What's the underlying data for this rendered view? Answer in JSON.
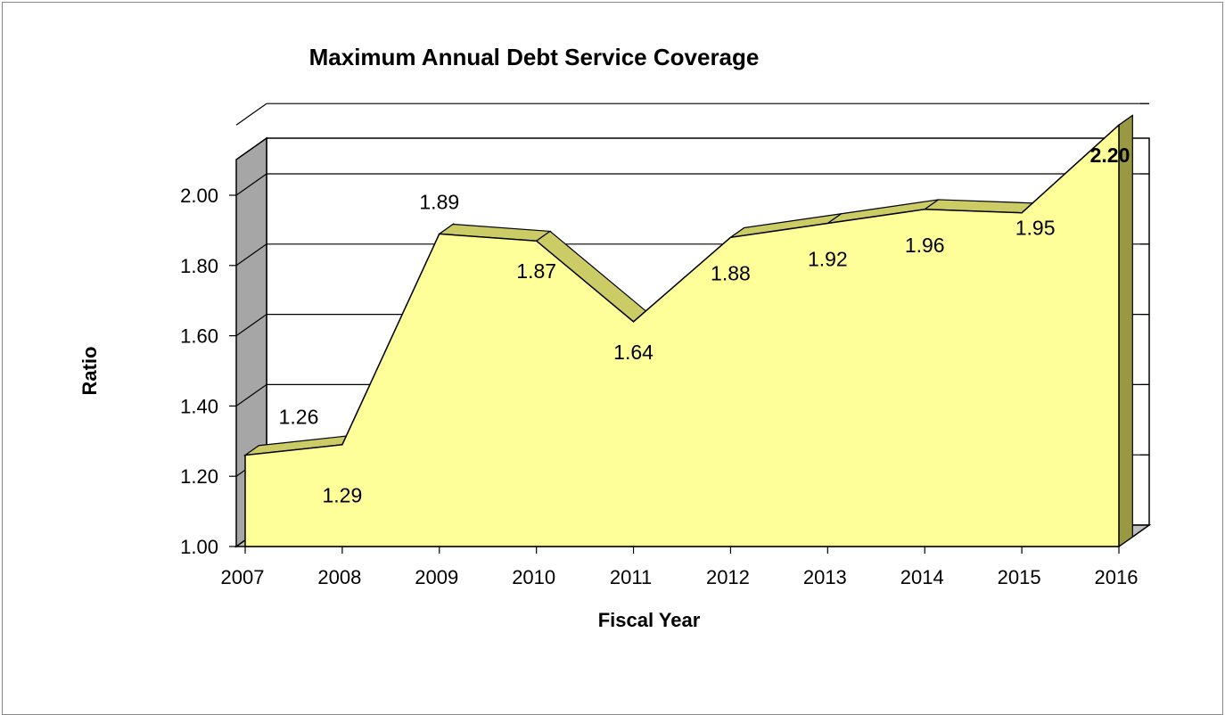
{
  "chart_data": {
    "type": "area",
    "title": "Maximum Annual Debt Service Coverage",
    "xlabel": "Fiscal Year",
    "ylabel": "Ratio",
    "categories": [
      "2007",
      "2008",
      "2009",
      "2010",
      "2011",
      "2012",
      "2013",
      "2014",
      "2015",
      "2016"
    ],
    "y_ticks": [
      "1.00",
      "1.20",
      "1.40",
      "1.60",
      "1.80",
      "2.00"
    ],
    "ylim": [
      1.0,
      2.0
    ],
    "series": [
      {
        "values": [
          1.26,
          1.29,
          1.89,
          1.87,
          1.64,
          1.88,
          1.92,
          1.96,
          1.95,
          2.2
        ],
        "labels": [
          "1.26",
          "1.29",
          "1.89",
          "1.87",
          "1.64",
          "1.88",
          "1.92",
          "1.96",
          "1.95",
          "2.20"
        ]
      }
    ],
    "highlighted_label_index": 9,
    "grid": true,
    "style": "3d",
    "colors": {
      "area_fill": "#FFFF99",
      "area_top": "#CCCC66",
      "area_side": "#999944",
      "wall": "#A6A6A6",
      "floor": "#BFBFBF",
      "grid": "#000000"
    }
  }
}
